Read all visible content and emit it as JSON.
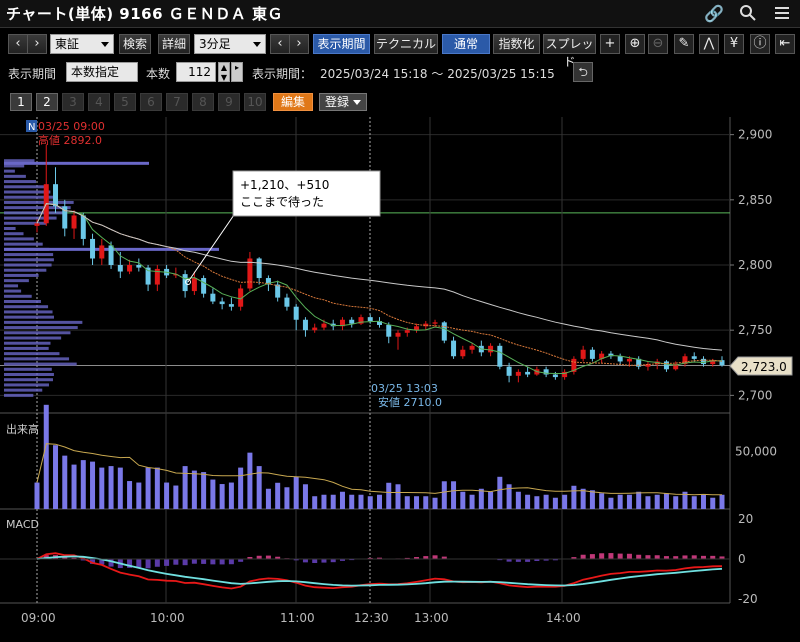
{
  "title": "チャート(単体) 9166 ＧＥＮＤＡ 東Ｇ",
  "title_icons": [
    "link-icon",
    "search-icon",
    "menu-icon"
  ],
  "toolbar": {
    "market": "東証",
    "search": "検索",
    "detail": "詳細",
    "interval": "3分足",
    "show_period": "表示期間",
    "technical": "テクニカル",
    "normal": "通常",
    "index": "指数化",
    "spread": "スプレッド"
  },
  "period": {
    "label": "表示期間",
    "mode": "本数指定",
    "count_label": "本数",
    "count": "112",
    "range_label": "表示期間：",
    "range": "2025/03/24 15:18 〜 2025/03/25 15:15"
  },
  "pages": [
    "1",
    "2",
    "3",
    "4",
    "5",
    "6",
    "7",
    "8",
    "9",
    "10"
  ],
  "edit_label": "編集",
  "register_label": "登録",
  "annotations": {
    "high_date": "03/25 09:00",
    "high_value": "高値 2892.0",
    "low_date": "03/25 13:03",
    "low_value": "安値 2710.0",
    "note_line1": "+1,210、+510",
    "note_line2": "ここまで待った",
    "marker": "N",
    "current_price": "2,723.0"
  },
  "colors": {
    "up": "#e01818",
    "down": "#6cc8e8",
    "ma_short": "#d8783a",
    "ma_long": "#c8c8c8",
    "volume": "#7a78e8",
    "macd_line": "#e81818",
    "signal_line": "#70e0e0",
    "hist_pos": "#c03878",
    "hist_neg": "#5a3aa8"
  },
  "chart_data": {
    "type": "candlestick",
    "price_axis": {
      "ticks": [
        "2,900",
        "2,850",
        "2,800",
        "2,750",
        "2,700"
      ],
      "range": [
        2688,
        2912
      ]
    },
    "volume_axis": {
      "label": "出来高",
      "ticks": [
        "50,000"
      ]
    },
    "macd_axis": {
      "label": "MACD",
      "ticks": [
        "20",
        "0",
        "-20"
      ]
    },
    "time_ticks": [
      "09:00",
      "10:00",
      "11:00",
      "12:30",
      "13:00",
      "14:00"
    ],
    "horizontal_lines": [
      2840,
      2723
    ],
    "bars": [
      [
        2830,
        2835,
        2825,
        2832
      ],
      [
        2832,
        2892,
        2830,
        2862
      ],
      [
        2862,
        2875,
        2840,
        2845
      ],
      [
        2845,
        2850,
        2822,
        2828
      ],
      [
        2828,
        2842,
        2820,
        2838
      ],
      [
        2838,
        2840,
        2815,
        2820
      ],
      [
        2820,
        2824,
        2800,
        2805
      ],
      [
        2805,
        2820,
        2800,
        2815
      ],
      [
        2815,
        2818,
        2797,
        2800
      ],
      [
        2800,
        2810,
        2790,
        2795
      ],
      [
        2795,
        2804,
        2793,
        2800
      ],
      [
        2800,
        2805,
        2795,
        2798
      ],
      [
        2798,
        2800,
        2780,
        2785
      ],
      [
        2785,
        2800,
        2780,
        2797
      ],
      [
        2797,
        2800,
        2790,
        2792
      ],
      [
        2792,
        2798,
        2790,
        2793
      ],
      [
        2793,
        2796,
        2775,
        2780
      ],
      [
        2780,
        2795,
        2777,
        2790
      ],
      [
        2790,
        2792,
        2775,
        2778
      ],
      [
        2778,
        2782,
        2770,
        2772
      ],
      [
        2772,
        2775,
        2766,
        2770
      ],
      [
        2770,
        2775,
        2765,
        2768
      ],
      [
        2768,
        2785,
        2765,
        2782
      ],
      [
        2782,
        2810,
        2780,
        2805
      ],
      [
        2805,
        2806,
        2785,
        2790
      ],
      [
        2790,
        2792,
        2780,
        2785
      ],
      [
        2785,
        2788,
        2772,
        2775
      ],
      [
        2775,
        2778,
        2765,
        2768
      ],
      [
        2768,
        2770,
        2750,
        2758
      ],
      [
        2758,
        2760,
        2745,
        2750
      ],
      [
        2750,
        2755,
        2748,
        2752
      ],
      [
        2752,
        2758,
        2750,
        2755
      ],
      [
        2755,
        2758,
        2750,
        2753
      ],
      [
        2753,
        2760,
        2750,
        2758
      ],
      [
        2758,
        2760,
        2752,
        2755
      ],
      [
        2755,
        2762,
        2754,
        2760
      ],
      [
        2760,
        2762,
        2755,
        2757
      ],
      [
        2757,
        2760,
        2752,
        2754
      ],
      [
        2754,
        2756,
        2740,
        2745
      ],
      [
        2745,
        2750,
        2735,
        2748
      ],
      [
        2748,
        2752,
        2745,
        2750
      ],
      [
        2750,
        2755,
        2748,
        2753
      ],
      [
        2753,
        2757,
        2750,
        2755
      ],
      [
        2755,
        2758,
        2752,
        2756
      ],
      [
        2756,
        2757,
        2740,
        2742
      ],
      [
        2742,
        2745,
        2728,
        2730
      ],
      [
        2730,
        2738,
        2728,
        2735
      ],
      [
        2735,
        2740,
        2732,
        2738
      ],
      [
        2738,
        2742,
        2730,
        2733
      ],
      [
        2733,
        2740,
        2730,
        2738
      ],
      [
        2738,
        2740,
        2720,
        2722
      ],
      [
        2722,
        2725,
        2710,
        2715
      ],
      [
        2715,
        2720,
        2710,
        2718
      ],
      [
        2718,
        2722,
        2714,
        2716
      ],
      [
        2716,
        2722,
        2715,
        2720
      ],
      [
        2720,
        2722,
        2714,
        2716
      ],
      [
        2716,
        2718,
        2712,
        2714
      ],
      [
        2714,
        2720,
        2712,
        2718
      ],
      [
        2718,
        2730,
        2716,
        2728
      ],
      [
        2728,
        2738,
        2726,
        2735
      ],
      [
        2735,
        2737,
        2726,
        2728
      ],
      [
        2728,
        2734,
        2725,
        2732
      ],
      [
        2732,
        2734,
        2728,
        2730
      ],
      [
        2730,
        2732,
        2724,
        2726
      ],
      [
        2726,
        2730,
        2722,
        2728
      ],
      [
        2728,
        2730,
        2720,
        2722
      ],
      [
        2722,
        2726,
        2719,
        2724
      ],
      [
        2724,
        2728,
        2720,
        2726
      ],
      [
        2726,
        2727,
        2718,
        2720
      ],
      [
        2720,
        2726,
        2719,
        2724
      ],
      [
        2724,
        2732,
        2722,
        2730
      ],
      [
        2730,
        2733,
        2726,
        2728
      ],
      [
        2728,
        2730,
        2722,
        2724
      ],
      [
        2724,
        2728,
        2722,
        2727
      ],
      [
        2727,
        2730,
        2722,
        2723
      ]
    ]
  }
}
